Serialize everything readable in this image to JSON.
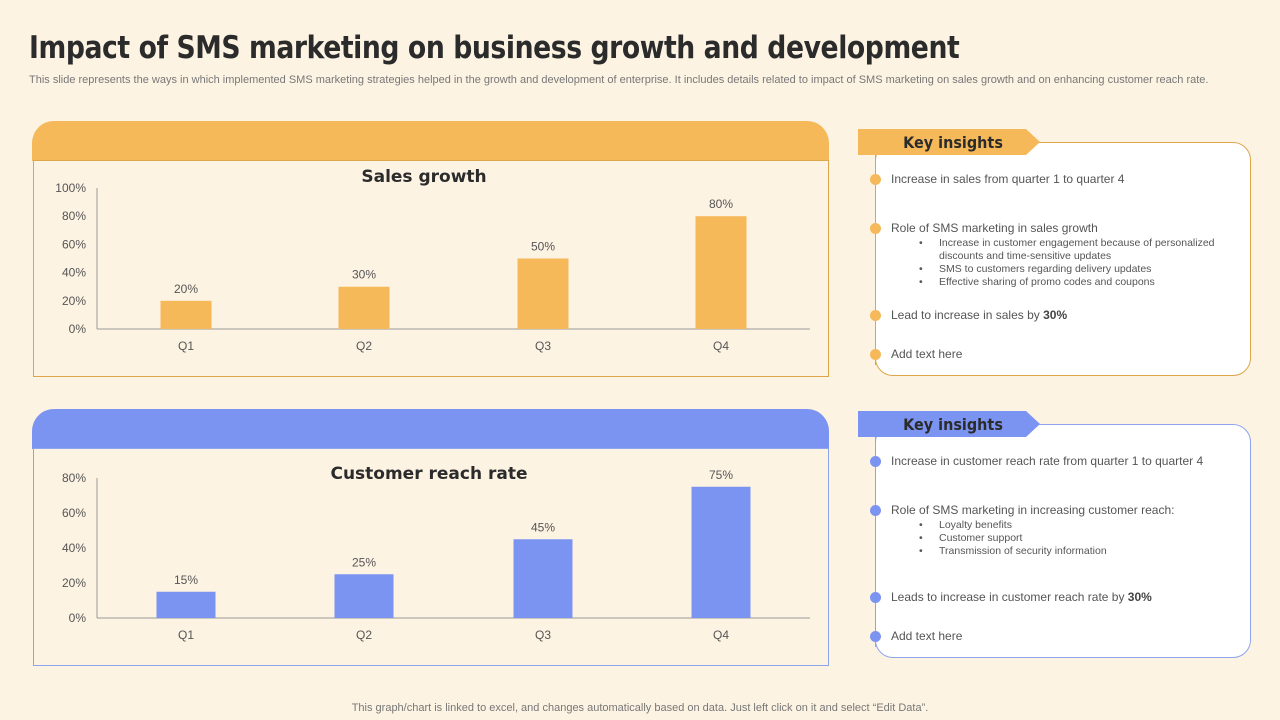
{
  "title": "Impact of SMS marketing on business growth and development",
  "subtitle": "This slide represents the ways in which implemented SMS marketing strategies helped in the growth and development of enterprise. It includes details related to impact of SMS  marketing on sales growth and on enhancing customer reach rate.",
  "colors": {
    "orange": "#f6b95a",
    "blue": "#7b93f1",
    "background": "#fdf3e3"
  },
  "chart_data": [
    {
      "type": "bar",
      "title": "Sales growth",
      "categories": [
        "Q1",
        "Q2",
        "Q3",
        "Q4"
      ],
      "values": [
        20,
        30,
        50,
        80
      ],
      "value_labels": [
        "20%",
        "30%",
        "50%",
        "80%"
      ],
      "y_ticks": [
        "0%",
        "20%",
        "40%",
        "60%",
        "80%",
        "100%"
      ],
      "ylim": [
        0,
        100
      ],
      "xlabel": "",
      "ylabel": "",
      "grid": false
    },
    {
      "type": "bar",
      "title": "Customer reach rate",
      "categories": [
        "Q1",
        "Q2",
        "Q3",
        "Q4"
      ],
      "values": [
        15,
        25,
        45,
        75
      ],
      "value_labels": [
        "15%",
        "25%",
        "45%",
        "75%"
      ],
      "y_ticks": [
        "0%",
        "20%",
        "40%",
        "60%",
        "80%"
      ],
      "ylim": [
        0,
        80
      ],
      "xlabel": "",
      "ylabel": "",
      "grid": false
    }
  ],
  "insights1": {
    "heading": "Key insights",
    "point1": "Increase in sales from quarter 1 to quarter 4",
    "point2": "Role of SMS  marketing in sales growth",
    "sub1": "Increase in customer engagement  because of personalized discounts and time-sensitive updates",
    "sub2": "SMS  to customers regarding delivery updates",
    "sub3": "Effective sharing of promo codes and coupons",
    "point3_prefix": "Lead to increase in sales by ",
    "point3_value": "30%",
    "point4": "Add text here"
  },
  "insights2": {
    "heading": "Key insights",
    "point1": "Increase in customer reach rate from quarter 1 to quarter 4",
    "point2": "Role of SMS  marketing in increasing customer reach:",
    "sub1": "Loyalty benefits",
    "sub2": "Customer support",
    "sub3": "Transmission of security information",
    "point3_prefix": "Leads to increase in customer reach rate by ",
    "point3_value": "30%",
    "point4": "Add text here"
  },
  "footer": "This graph/chart is linked to excel,  and changes automatically based on data. Just left click on it and select “Edit Data”."
}
